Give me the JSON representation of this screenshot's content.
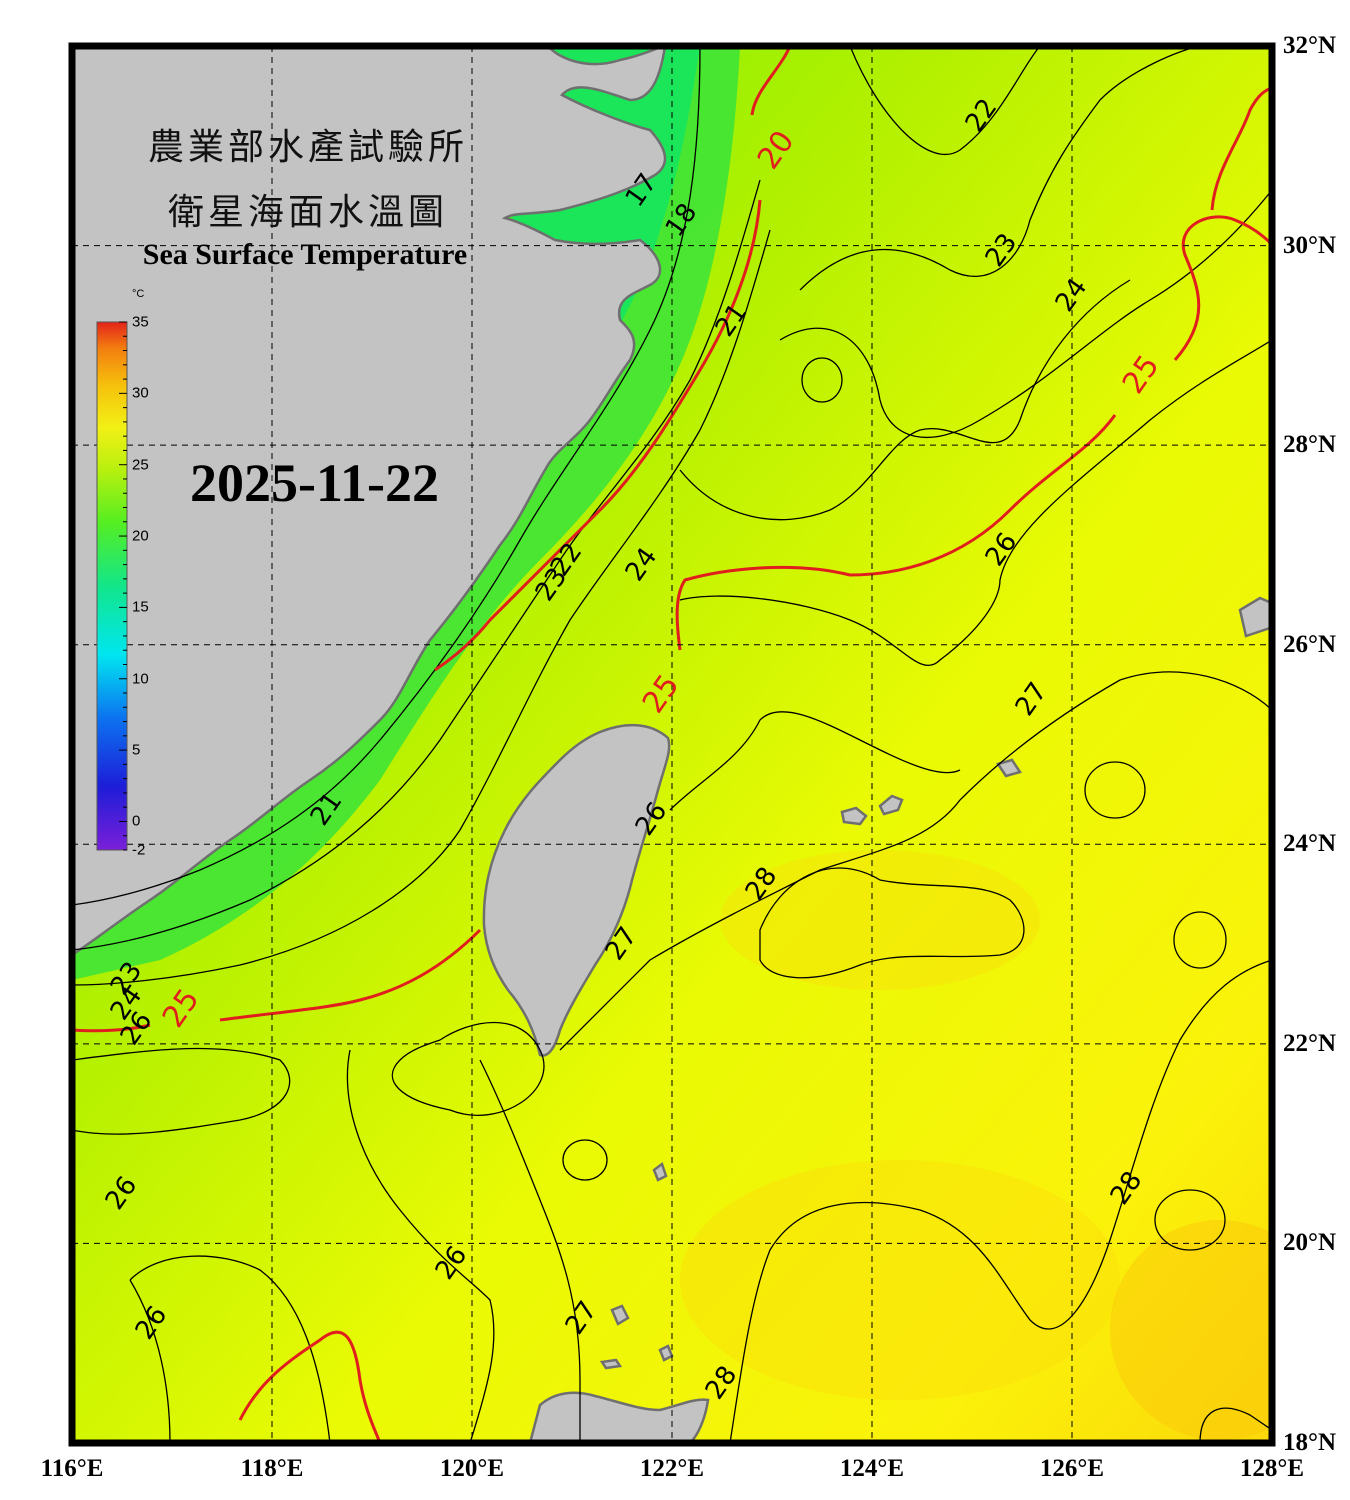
{
  "title": {
    "line1": "農業部水產試驗所",
    "line2": "衛星海面水溫圖",
    "english": "Sea Surface Temperature"
  },
  "date": "2025-11-22",
  "colorbar": {
    "unit": "°C",
    "min": -2,
    "max": 35,
    "ticks": [
      "35",
      "30",
      "25",
      "20",
      "15",
      "10",
      "5",
      "0",
      "-2"
    ],
    "tick_values": [
      35,
      30,
      25,
      20,
      15,
      10,
      5,
      0,
      -2
    ]
  },
  "axes": {
    "longitude_labels": [
      "116°E",
      "118°E",
      "120°E",
      "122°E",
      "124°E",
      "126°E",
      "128°E"
    ],
    "longitude_values": [
      116,
      118,
      120,
      122,
      124,
      126,
      128
    ],
    "latitude_labels": [
      "32°N",
      "30°N",
      "28°N",
      "26°N",
      "24°N",
      "22°N",
      "20°N",
      "18°N"
    ],
    "latitude_values": [
      32,
      30,
      28,
      26,
      24,
      22,
      20,
      18
    ],
    "lon_range": [
      116,
      128
    ],
    "lat_range": [
      18,
      32
    ],
    "grid": "dashed"
  },
  "contour_labels": [
    {
      "text": "17",
      "lon": 121.7,
      "lat": 30.55,
      "color": "black"
    },
    {
      "text": "18",
      "lon": 122.1,
      "lat": 30.25,
      "color": "black"
    },
    {
      "text": "20",
      "lon": 123.05,
      "lat": 30.95,
      "color": "red"
    },
    {
      "text": "22",
      "lon": 125.1,
      "lat": 31.3,
      "color": "black"
    },
    {
      "text": "23",
      "lon": 125.3,
      "lat": 29.95,
      "color": "black"
    },
    {
      "text": "24",
      "lon": 126.0,
      "lat": 29.5,
      "color": "black"
    },
    {
      "text": "25",
      "lon": 126.7,
      "lat": 28.7,
      "color": "red"
    },
    {
      "text": "21",
      "lon": 122.6,
      "lat": 29.25,
      "color": "black"
    },
    {
      "text": "22",
      "lon": 120.95,
      "lat": 26.85,
      "color": "black"
    },
    {
      "text": "23",
      "lon": 120.8,
      "lat": 26.6,
      "color": "black"
    },
    {
      "text": "24",
      "lon": 121.7,
      "lat": 26.8,
      "color": "black"
    },
    {
      "text": "26",
      "lon": 125.3,
      "lat": 26.95,
      "color": "black"
    },
    {
      "text": "25",
      "lon": 121.9,
      "lat": 25.5,
      "color": "red"
    },
    {
      "text": "27",
      "lon": 125.6,
      "lat": 25.45,
      "color": "black"
    },
    {
      "text": "21",
      "lon": 118.55,
      "lat": 24.35,
      "color": "black"
    },
    {
      "text": "26",
      "lon": 121.8,
      "lat": 24.25,
      "color": "black"
    },
    {
      "text": "28",
      "lon": 122.9,
      "lat": 23.6,
      "color": "black"
    },
    {
      "text": "27",
      "lon": 121.5,
      "lat": 23.0,
      "color": "black"
    },
    {
      "text": "23",
      "lon": 116.55,
      "lat": 22.65,
      "color": "black"
    },
    {
      "text": "24",
      "lon": 116.55,
      "lat": 22.4,
      "color": "black"
    },
    {
      "text": "26",
      "lon": 116.65,
      "lat": 22.15,
      "color": "black"
    },
    {
      "text": "25",
      "lon": 117.1,
      "lat": 22.35,
      "color": "red"
    },
    {
      "text": "26",
      "lon": 116.5,
      "lat": 20.5,
      "color": "black"
    },
    {
      "text": "26",
      "lon": 119.8,
      "lat": 19.8,
      "color": "black"
    },
    {
      "text": "28",
      "lon": 126.55,
      "lat": 20.55,
      "color": "black"
    },
    {
      "text": "26",
      "lon": 116.8,
      "lat": 19.2,
      "color": "black"
    },
    {
      "text": "27",
      "lon": 121.1,
      "lat": 19.25,
      "color": "black"
    },
    {
      "text": "28",
      "lon": 122.5,
      "lat": 18.6,
      "color": "black"
    }
  ],
  "colors": {
    "land": "#c3c3c3",
    "land_outline": "#6f6f6f",
    "contour": "#000000",
    "contour_highlight": "#e01e1e",
    "cold_shelf": "#22dd33",
    "warm_sea": "#ffff10"
  }
}
